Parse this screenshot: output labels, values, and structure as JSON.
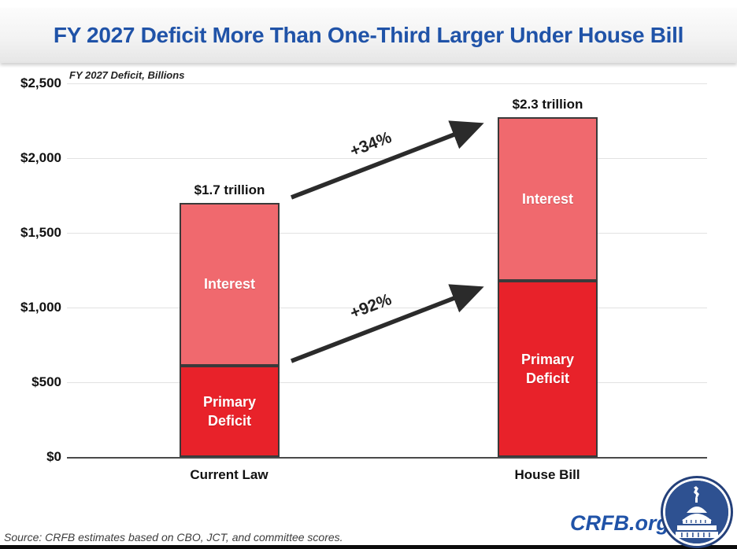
{
  "slide": {
    "title": "FY 2027 Deficit More Than One-Third Larger Under House Bill",
    "source_note": "Source: CRFB estimates based on CBO, JCT, and committee scores.",
    "brand": {
      "site": "CRFB.org"
    },
    "colors": {
      "title_blue": "#2053A8",
      "primary_deficit_red": "#E8222A",
      "interest_salmon": "#F0696E",
      "bar_border": "#3A3A3A",
      "gridline": "#E2E2E2",
      "arrow": "#2B2B2B",
      "logo_navy": "#24407A",
      "logo_disc_blue": "#2E5191"
    }
  },
  "chart_data": {
    "type": "bar",
    "stacked": true,
    "title": "FY 2027 Deficit More Than One-Third Larger Under House Bill",
    "subtitle": "FY 2027 Deficit, Billions",
    "categories": [
      "Current Law",
      "House Bill"
    ],
    "series": [
      {
        "name": "Primary Deficit",
        "values": [
          610,
          1180
        ],
        "color": "#E8222A"
      },
      {
        "name": "Interest",
        "values": [
          1090,
          1095
        ],
        "color": "#F0696E"
      }
    ],
    "totals_billions": [
      1700,
      2275
    ],
    "total_labels": [
      "$1.7 trillion",
      "$2.3 trillion"
    ],
    "annotations": [
      {
        "text": "+34%"
      },
      {
        "text": "+92%"
      }
    ],
    "xlabel": "",
    "ylabel": "",
    "ylim": [
      0,
      2500
    ],
    "y_ticks": [
      {
        "value": 2500,
        "label": "$2,500"
      },
      {
        "value": 2000,
        "label": "$2,000"
      },
      {
        "value": 1500,
        "label": "$1,500"
      },
      {
        "value": 1000,
        "label": "$1,000"
      },
      {
        "value": 500,
        "label": "$500"
      },
      {
        "value": 0,
        "label": "$0"
      }
    ],
    "grid": true,
    "legend_position": "none"
  }
}
